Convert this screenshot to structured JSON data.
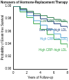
{
  "chart_data": {
    "type": "line",
    "title": "Nonusers of Hormone-Replacement Therapy",
    "x_label": "Years of Follow-up",
    "y_label": "Probability of Event-free Survival",
    "line_style": "step",
    "xlim": [
      0,
      8
    ],
    "xticks": [
      0,
      2,
      4,
      6,
      8
    ],
    "ylim": [
      0.9,
      1.0
    ],
    "yticks": [
      {
        "value": 0.9,
        "label": "0.90"
      },
      {
        "value": 0.92,
        "label": "0.92"
      },
      {
        "value": 0.94,
        "label": "0.94"
      },
      {
        "value": 0.96,
        "label": "0.96"
      },
      {
        "value": 0.98,
        "label": "0.98"
      },
      {
        "value": 1.0,
        "label": "1.00"
      }
    ],
    "x": [
      0,
      1,
      2,
      3,
      4,
      5,
      6,
      7,
      8
    ],
    "series": [
      {
        "name": "Low CRP–low LDL",
        "color": "#2e7d4f",
        "values": [
          1.0,
          0.996,
          0.992,
          0.988,
          0.985,
          0.982,
          0.979,
          0.976,
          0.973
        ]
      },
      {
        "name": "Low CRP–high LDL",
        "color": "#1f3f7a",
        "values": [
          1.0,
          0.995,
          0.99,
          0.985,
          0.98,
          0.976,
          0.972,
          0.968,
          0.965
        ]
      },
      {
        "name": "High CRP–low LDL",
        "color": "#5aa7d6",
        "values": [
          1.0,
          0.993,
          0.985,
          0.977,
          0.97,
          0.963,
          0.956,
          0.95,
          0.944
        ]
      },
      {
        "name": "High CRP–high LDL",
        "color": "#3aa84a",
        "values": [
          1.0,
          0.991,
          0.982,
          0.972,
          0.963,
          0.955,
          0.947,
          0.94,
          0.934
        ]
      }
    ]
  }
}
